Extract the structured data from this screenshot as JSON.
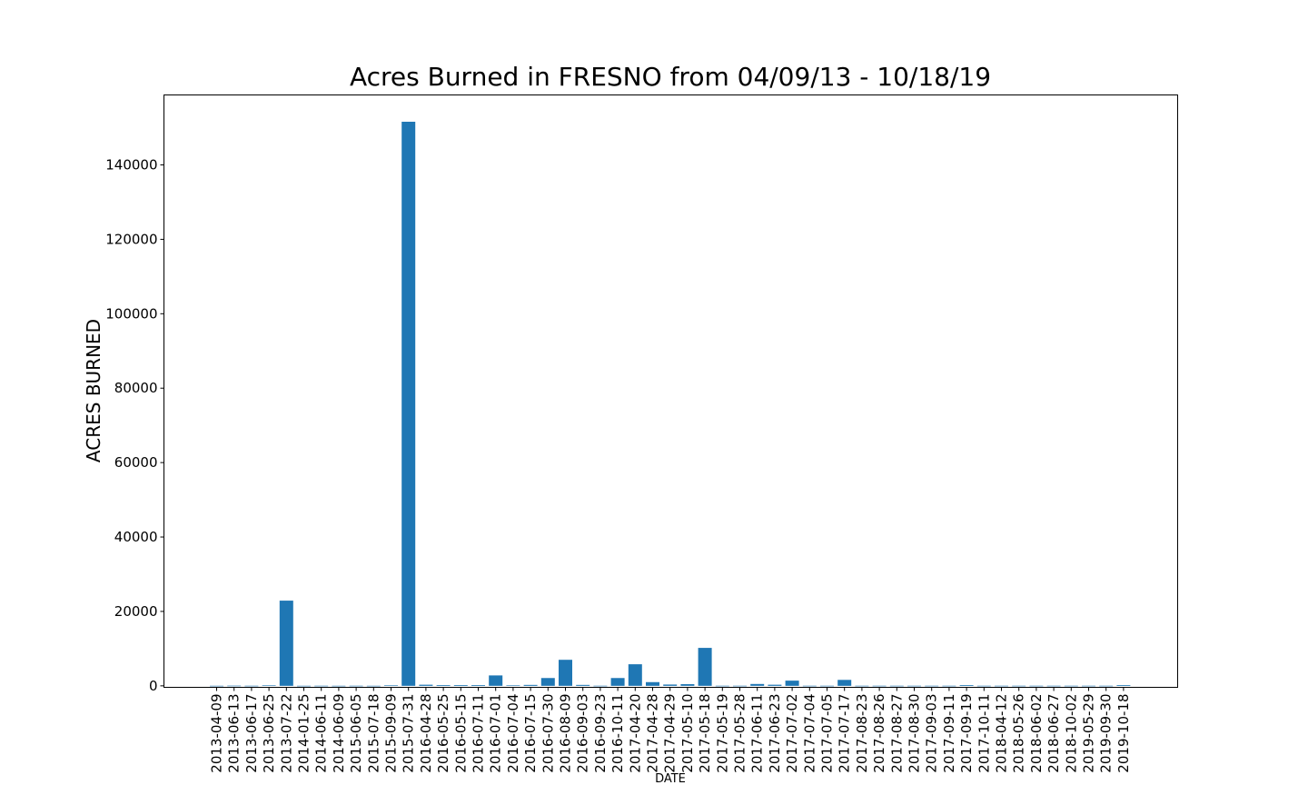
{
  "chart_data": {
    "type": "bar",
    "title": "Acres Burned in FRESNO from 04/09/13 - 10/18/19",
    "xlabel": "DATE",
    "ylabel": "ACRES BURNED",
    "ylim": [
      -400,
      158800
    ],
    "yticks": [
      0,
      20000,
      40000,
      60000,
      80000,
      100000,
      120000,
      140000
    ],
    "color": "#1f77b4",
    "grid": false,
    "categories": [
      "2013-04-09",
      "2013-06-13",
      "2013-06-17",
      "2013-06-25",
      "2013-07-22",
      "2014-01-25",
      "2014-06-11",
      "2014-06-09",
      "2015-06-05",
      "2015-07-18",
      "2015-09-09",
      "2015-07-31",
      "2016-04-28",
      "2016-05-25",
      "2016-05-15",
      "2016-07-11",
      "2016-07-01",
      "2016-07-04",
      "2016-07-15",
      "2016-07-30",
      "2016-08-09",
      "2016-09-03",
      "2016-09-23",
      "2016-10-11",
      "2017-04-20",
      "2017-04-28",
      "2017-04-29",
      "2017-05-10",
      "2017-05-18",
      "2017-05-19",
      "2017-05-28",
      "2017-06-11",
      "2017-06-23",
      "2017-07-02",
      "2017-07-04",
      "2017-07-05",
      "2017-07-17",
      "2017-08-23",
      "2017-08-26",
      "2017-08-27",
      "2017-08-30",
      "2017-09-03",
      "2017-09-11",
      "2017-09-19",
      "2017-10-11",
      "2018-04-12",
      "2018-05-26",
      "2018-06-02",
      "2018-06-27",
      "2018-10-02",
      "2019-05-29",
      "2019-09-30",
      "2019-10-18"
    ],
    "values": [
      20,
      50,
      30,
      150,
      22900,
      20,
      30,
      20,
      30,
      20,
      150,
      151600,
      300,
      200,
      200,
      200,
      2800,
      150,
      250,
      2100,
      7000,
      250,
      30,
      2100,
      5800,
      1000,
      350,
      450,
      10200,
      30,
      30,
      500,
      300,
      1400,
      30,
      30,
      1600,
      30,
      30,
      30,
      30,
      30,
      30,
      200,
      30,
      30,
      30,
      30,
      30,
      30,
      30,
      30,
      200
    ]
  }
}
